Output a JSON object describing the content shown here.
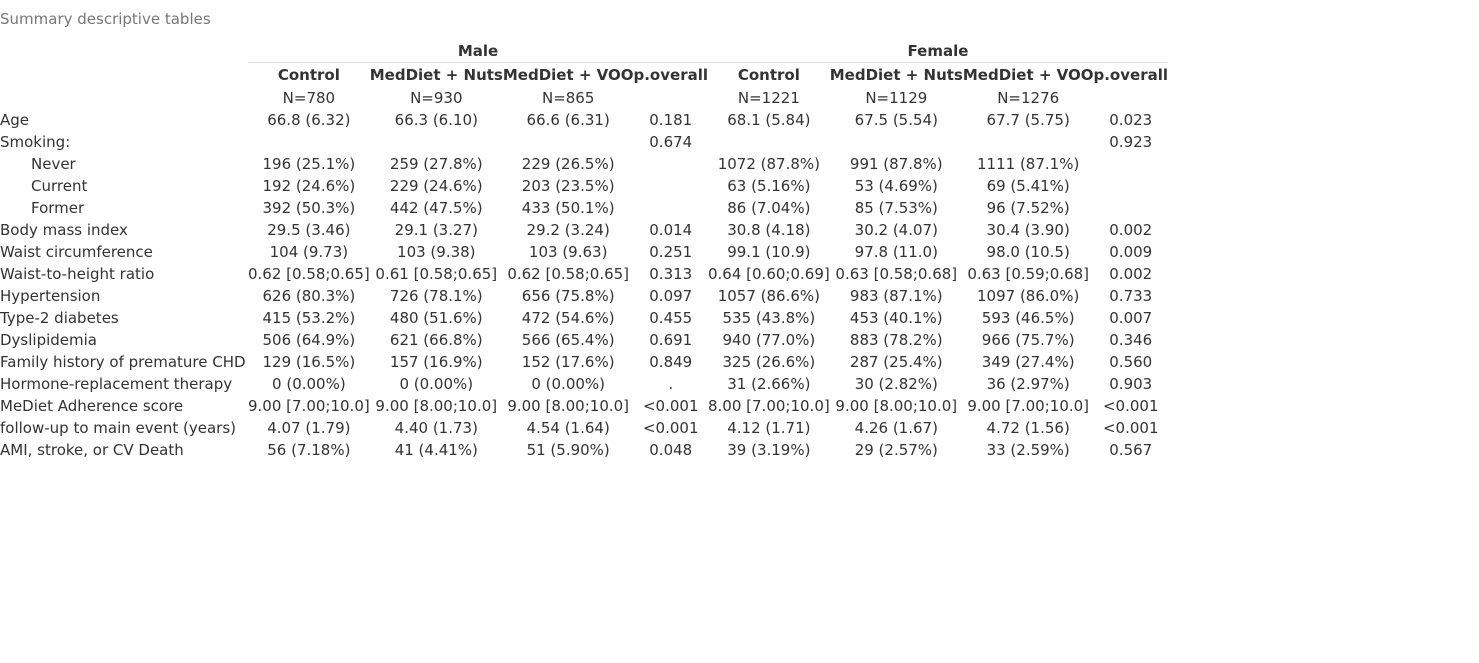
{
  "caption": "Summary descriptive tables",
  "groups": [
    {
      "name": "Male"
    },
    {
      "name": "Female"
    }
  ],
  "columns": {
    "male": [
      {
        "label": "Control",
        "n": "N=780"
      },
      {
        "label": "MedDiet + Nuts",
        "n": "N=930"
      },
      {
        "label": "MedDiet + VOO",
        "n": "N=865"
      },
      {
        "label": "p.overall",
        "n": ""
      }
    ],
    "female": [
      {
        "label": "Control",
        "n": "N=1221"
      },
      {
        "label": "MedDiet + Nuts",
        "n": "N=1129"
      },
      {
        "label": "MedDiet + VOO",
        "n": "N=1276"
      },
      {
        "label": "p.overall",
        "n": ""
      }
    ]
  },
  "rows": [
    {
      "label": "Age",
      "indent": false,
      "values": [
        "66.8 (6.32)",
        "66.3 (6.10)",
        "66.6 (6.31)",
        "0.181",
        "68.1 (5.84)",
        "67.5 (5.54)",
        "67.7 (5.75)",
        "0.023"
      ]
    },
    {
      "label": "Smoking:",
      "indent": false,
      "values": [
        "",
        "",
        "",
        "0.674",
        "",
        "",
        "",
        "0.923"
      ]
    },
    {
      "label": "Never",
      "indent": true,
      "values": [
        "196 (25.1%)",
        "259 (27.8%)",
        "229 (26.5%)",
        "",
        "1072 (87.8%)",
        "991 (87.8%)",
        "1111 (87.1%)",
        ""
      ]
    },
    {
      "label": "Current",
      "indent": true,
      "values": [
        "192 (24.6%)",
        "229 (24.6%)",
        "203 (23.5%)",
        "",
        "63 (5.16%)",
        "53 (4.69%)",
        "69 (5.41%)",
        ""
      ]
    },
    {
      "label": "Former",
      "indent": true,
      "values": [
        "392 (50.3%)",
        "442 (47.5%)",
        "433 (50.1%)",
        "",
        "86 (7.04%)",
        "85 (7.53%)",
        "96 (7.52%)",
        ""
      ]
    },
    {
      "label": "Body mass index",
      "indent": false,
      "values": [
        "29.5 (3.46)",
        "29.1 (3.27)",
        "29.2 (3.24)",
        "0.014",
        "30.8 (4.18)",
        "30.2 (4.07)",
        "30.4 (3.90)",
        "0.002"
      ]
    },
    {
      "label": "Waist circumference",
      "indent": false,
      "values": [
        "104 (9.73)",
        "103 (9.38)",
        "103 (9.63)",
        "0.251",
        "99.1 (10.9)",
        "97.8 (11.0)",
        "98.0 (10.5)",
        "0.009"
      ]
    },
    {
      "label": "Waist-to-height ratio",
      "indent": false,
      "values": [
        "0.62 [0.58;0.65]",
        "0.61 [0.58;0.65]",
        "0.62 [0.58;0.65]",
        "0.313",
        "0.64 [0.60;0.69]",
        "0.63 [0.58;0.68]",
        "0.63 [0.59;0.68]",
        "0.002"
      ]
    },
    {
      "label": "Hypertension",
      "indent": false,
      "values": [
        "626 (80.3%)",
        "726 (78.1%)",
        "656 (75.8%)",
        "0.097",
        "1057 (86.6%)",
        "983 (87.1%)",
        "1097 (86.0%)",
        "0.733"
      ]
    },
    {
      "label": "Type-2 diabetes",
      "indent": false,
      "values": [
        "415 (53.2%)",
        "480 (51.6%)",
        "472 (54.6%)",
        "0.455",
        "535 (43.8%)",
        "453 (40.1%)",
        "593 (46.5%)",
        "0.007"
      ]
    },
    {
      "label": "Dyslipidemia",
      "indent": false,
      "values": [
        "506 (64.9%)",
        "621 (66.8%)",
        "566 (65.4%)",
        "0.691",
        "940 (77.0%)",
        "883 (78.2%)",
        "966 (75.7%)",
        "0.346"
      ]
    },
    {
      "label": "Family history of premature CHD",
      "indent": false,
      "values": [
        "129 (16.5%)",
        "157 (16.9%)",
        "152 (17.6%)",
        "0.849",
        "325 (26.6%)",
        "287 (25.4%)",
        "349 (27.4%)",
        "0.560"
      ]
    },
    {
      "label": "Hormone-replacement therapy",
      "indent": false,
      "values": [
        "0 (0.00%)",
        "0 (0.00%)",
        "0 (0.00%)",
        ".",
        "31 (2.66%)",
        "30 (2.82%)",
        "36 (2.97%)",
        "0.903"
      ]
    },
    {
      "label": "MeDiet Adherence score",
      "indent": false,
      "values": [
        "9.00 [7.00;10.0]",
        "9.00 [8.00;10.0]",
        "9.00 [8.00;10.0]",
        "<0.001",
        "8.00 [7.00;10.0]",
        "9.00 [8.00;10.0]",
        "9.00 [7.00;10.0]",
        "<0.001"
      ]
    },
    {
      "label": "follow-up to main event (years)",
      "indent": false,
      "values": [
        "4.07 (1.79)",
        "4.40 (1.73)",
        "4.54 (1.64)",
        "<0.001",
        "4.12 (1.71)",
        "4.26 (1.67)",
        "4.72 (1.56)",
        "<0.001"
      ]
    },
    {
      "label": "AMI, stroke, or CV Death",
      "indent": false,
      "values": [
        "56 (7.18%)",
        "41 (4.41%)",
        "51 (5.90%)",
        "0.048",
        "39 (3.19%)",
        "29 (2.57%)",
        "33 (2.59%)",
        "0.567"
      ]
    }
  ]
}
